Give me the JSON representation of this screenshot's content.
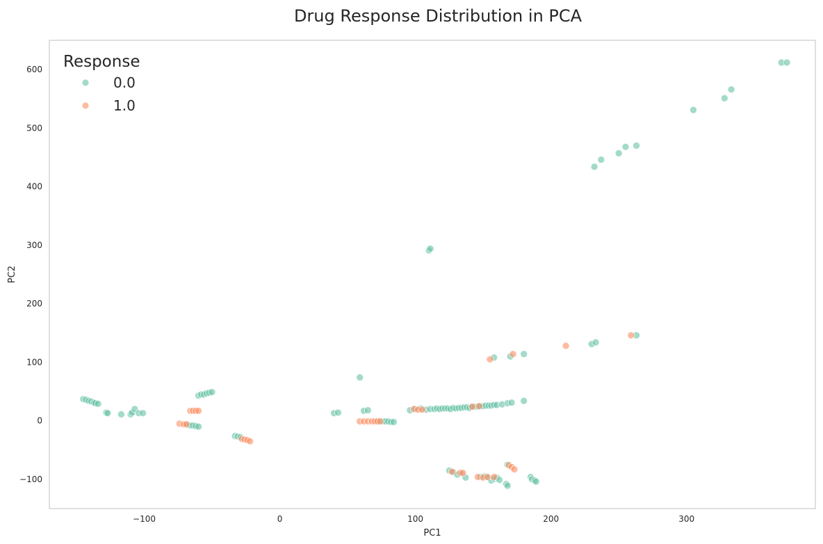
{
  "chart_data": {
    "type": "scatter",
    "title": "Drug Response Distribution in PCA",
    "xlabel": "PC1",
    "ylabel": "PC2",
    "xlim": [
      -170,
      395
    ],
    "ylim": [
      -150,
      650
    ],
    "xticks": [
      -100,
      0,
      100,
      200,
      300
    ],
    "yticks": [
      -100,
      0,
      100,
      200,
      300,
      400,
      500,
      600
    ],
    "xtick_labels": [
      "−100",
      "0",
      "100",
      "200",
      "300"
    ],
    "ytick_labels": [
      "−100",
      "0",
      "100",
      "200",
      "300",
      "400",
      "500",
      "600"
    ],
    "grid": false,
    "legend": {
      "title": "Response",
      "placement": "top-left"
    },
    "series": [
      {
        "name": "0.0",
        "color": "#66c2a5",
        "points": [
          [
            -145,
            37
          ],
          [
            -143,
            36
          ],
          [
            -141,
            34
          ],
          [
            -139,
            33
          ],
          [
            -137,
            31
          ],
          [
            -136,
            30
          ],
          [
            -134,
            29
          ],
          [
            -128,
            14
          ],
          [
            -127,
            13
          ],
          [
            -117,
            11
          ],
          [
            -110,
            11
          ],
          [
            -109,
            14
          ],
          [
            -107,
            20
          ],
          [
            -104,
            13
          ],
          [
            -101,
            13
          ],
          [
            -60,
            43
          ],
          [
            -58,
            45
          ],
          [
            -56,
            45
          ],
          [
            -54,
            47
          ],
          [
            -52,
            48
          ],
          [
            -50,
            49
          ],
          [
            -68,
            -7
          ],
          [
            -66,
            -8
          ],
          [
            -64,
            -8
          ],
          [
            -62,
            -9
          ],
          [
            -60,
            -10
          ],
          [
            -33,
            -26
          ],
          [
            -31,
            -27
          ],
          [
            -29,
            -28
          ],
          [
            40,
            13
          ],
          [
            43,
            14
          ],
          [
            59,
            74
          ],
          [
            62,
            17
          ],
          [
            65,
            18
          ],
          [
            73,
            -1
          ],
          [
            76,
            -1
          ],
          [
            78,
            -1
          ],
          [
            80,
            -1
          ],
          [
            82,
            -2
          ],
          [
            84,
            -2
          ],
          [
            96,
            18
          ],
          [
            100,
            20
          ],
          [
            104,
            21
          ],
          [
            108,
            19
          ],
          [
            111,
            20
          ],
          [
            114,
            20
          ],
          [
            116,
            21
          ],
          [
            118,
            20
          ],
          [
            120,
            21
          ],
          [
            122,
            21
          ],
          [
            124,
            21
          ],
          [
            126,
            20
          ],
          [
            128,
            22
          ],
          [
            130,
            21
          ],
          [
            132,
            22
          ],
          [
            134,
            22
          ],
          [
            136,
            23
          ],
          [
            138,
            23
          ],
          [
            140,
            22
          ],
          [
            142,
            24
          ],
          [
            144,
            24
          ],
          [
            146,
            24
          ],
          [
            148,
            25
          ],
          [
            150,
            25
          ],
          [
            152,
            26
          ],
          [
            154,
            26
          ],
          [
            156,
            26
          ],
          [
            158,
            27
          ],
          [
            160,
            27
          ],
          [
            164,
            28
          ],
          [
            168,
            30
          ],
          [
            171,
            31
          ],
          [
            180,
            34
          ],
          [
            110,
            291
          ],
          [
            111,
            294
          ],
          [
            158,
            108
          ],
          [
            170,
            110
          ],
          [
            180,
            114
          ],
          [
            230,
            131
          ],
          [
            233,
            134
          ],
          [
            263,
            146
          ],
          [
            125,
            -85
          ],
          [
            128,
            -88
          ],
          [
            131,
            -92
          ],
          [
            134,
            -90
          ],
          [
            137,
            -97
          ],
          [
            148,
            -96
          ],
          [
            151,
            -95
          ],
          [
            154,
            -97
          ],
          [
            156,
            -102
          ],
          [
            158,
            -99
          ],
          [
            160,
            -97
          ],
          [
            162,
            -101
          ],
          [
            167,
            -108
          ],
          [
            168,
            -111
          ],
          [
            168,
            -75
          ],
          [
            185,
            -96
          ],
          [
            186,
            -100
          ],
          [
            188,
            -102
          ],
          [
            189,
            -104
          ],
          [
            232,
            434
          ],
          [
            237,
            446
          ],
          [
            250,
            457
          ],
          [
            255,
            468
          ],
          [
            263,
            470
          ],
          [
            305,
            531
          ],
          [
            328,
            551
          ],
          [
            333,
            566
          ],
          [
            370,
            612
          ],
          [
            374,
            612
          ]
        ]
      },
      {
        "name": "1.0",
        "color": "#fc8d62",
        "points": [
          [
            -74,
            -5
          ],
          [
            -71,
            -6
          ],
          [
            -69,
            -6
          ],
          [
            -66,
            17
          ],
          [
            -64,
            17
          ],
          [
            -62,
            17
          ],
          [
            -60,
            17
          ],
          [
            -28,
            -31
          ],
          [
            -26,
            -32
          ],
          [
            -24,
            -33
          ],
          [
            -22,
            -35
          ],
          [
            59,
            -1
          ],
          [
            62,
            -1
          ],
          [
            65,
            -1
          ],
          [
            68,
            -1
          ],
          [
            70,
            -1
          ],
          [
            72,
            -1
          ],
          [
            74,
            -1
          ],
          [
            99,
            20
          ],
          [
            102,
            19
          ],
          [
            105,
            19
          ],
          [
            142,
            24
          ],
          [
            147,
            25
          ],
          [
            155,
            105
          ],
          [
            172,
            114
          ],
          [
            211,
            128
          ],
          [
            259,
            146
          ],
          [
            127,
            -87
          ],
          [
            133,
            -89
          ],
          [
            135,
            -89
          ],
          [
            146,
            -96
          ],
          [
            150,
            -97
          ],
          [
            153,
            -96
          ],
          [
            158,
            -96
          ],
          [
            169,
            -76
          ],
          [
            171,
            -79
          ],
          [
            173,
            -83
          ]
        ]
      }
    ]
  }
}
